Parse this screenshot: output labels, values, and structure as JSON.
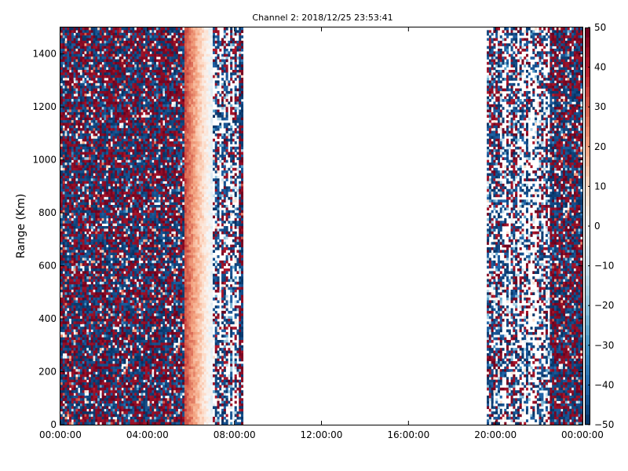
{
  "chart_data": {
    "type": "heatmap",
    "title": "Channel 2: 2018/12/25 23:53:41",
    "xlabel": "",
    "ylabel": "Range (Km)",
    "xlim_hours": [
      0,
      24
    ],
    "ylim": [
      0,
      1500
    ],
    "x_tick_labels": [
      "00:00:00",
      "04:00:00",
      "08:00:00",
      "12:00:00",
      "16:00:00",
      "20:00:00",
      "00:00:00"
    ],
    "x_tick_hours": [
      0,
      4,
      8,
      12,
      16,
      20,
      24
    ],
    "y_ticks": [
      0,
      200,
      400,
      600,
      800,
      1000,
      1200,
      1400
    ],
    "colorbar": {
      "min": -50,
      "max": 50,
      "ticks": [
        50,
        40,
        30,
        20,
        10,
        0,
        -10,
        -20,
        -30,
        -40,
        -50
      ],
      "colormap": "RdBu_r",
      "colors": [
        "#053061",
        "#2166ac",
        "#4393c3",
        "#92c5de",
        "#d1e5f0",
        "#f7f7f7",
        "#fddbc7",
        "#f4a582",
        "#d6604d",
        "#b2182b",
        "#67001f"
      ]
    },
    "data_segments": [
      {
        "start": "00:00:00",
        "end": "05:45:00",
        "pattern": "noise",
        "range_km": [
          0,
          1500
        ]
      },
      {
        "start": "05:45:00",
        "end": "07:00:00",
        "pattern": "warm gradient",
        "range_km": [
          0,
          1500
        ]
      },
      {
        "start": "07:00:00",
        "end": "08:15:00",
        "pattern": "sparse noise",
        "range_km": [
          0,
          1500
        ]
      },
      {
        "start": "08:15:00",
        "end": "08:25:00",
        "pattern": "noise",
        "range_km": [
          0,
          1500
        ]
      },
      {
        "start": "08:25:00",
        "end": "19:35:00",
        "pattern": "no data",
        "range_km": [
          0,
          1500
        ]
      },
      {
        "start": "19:35:00",
        "end": "22:30:00",
        "pattern": "sparse noise",
        "range_km": [
          0,
          1500
        ]
      },
      {
        "start": "22:30:00",
        "end": "24:00:00",
        "pattern": "noise",
        "range_km": [
          0,
          1500
        ]
      }
    ]
  }
}
